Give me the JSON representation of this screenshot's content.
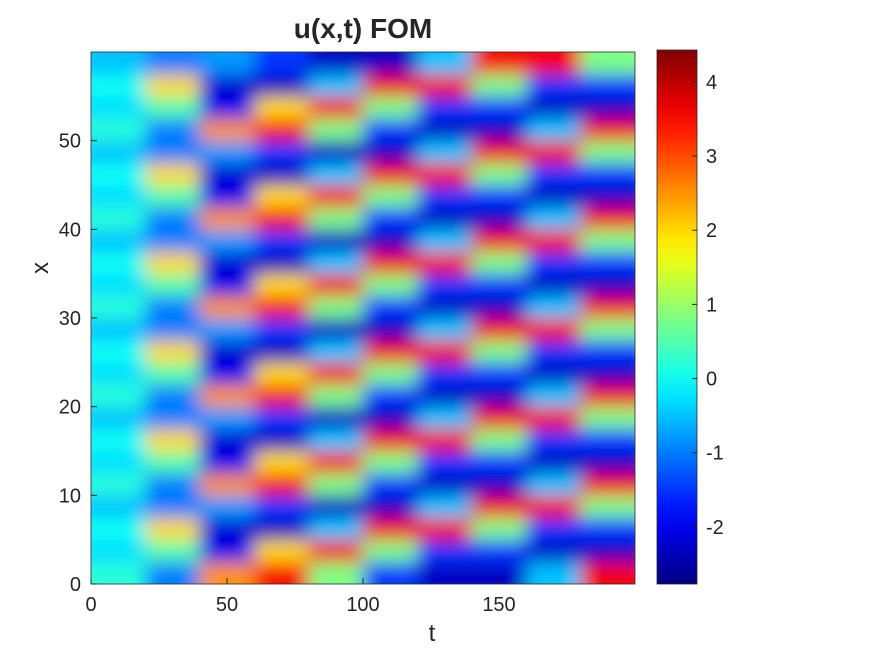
{
  "chart_data": {
    "type": "heatmap",
    "title": "u(x,t) FOM",
    "x_label": "t",
    "y_label": "x",
    "colormap": "jet",
    "x": [
      10,
      30,
      50,
      70,
      90,
      110,
      130,
      150,
      170,
      190
    ],
    "y": [
      1.25,
      3.75,
      6.25,
      8.75,
      11.25,
      13.75,
      16.25,
      18.75,
      21.25,
      23.75,
      26.25,
      28.75,
      31.25,
      33.75,
      36.25,
      38.75,
      41.25,
      43.75,
      46.25,
      48.75,
      51.25,
      53.75,
      56.25,
      58.75
    ],
    "z": [
      [
        0.2,
        -1.0,
        2.5,
        3.6,
        0.8,
        -1.5,
        -2.3,
        -2.3,
        -0.5,
        3.6
      ],
      [
        -0.3,
        0.5,
        -2.0,
        2.0,
        3.6,
        0.8,
        -1.5,
        -1.5,
        -2.3,
        -2.3
      ],
      [
        0.0,
        2.0,
        -2.2,
        -2.3,
        -0.5,
        3.6,
        3.6,
        0.8,
        -1.5,
        -1.5
      ],
      [
        -0.5,
        -1.0,
        -0.8,
        -1.5,
        -2.3,
        -2.3,
        -0.5,
        3.6,
        3.6,
        0.8
      ],
      [
        0.2,
        -1.0,
        2.5,
        3.6,
        0.8,
        -1.5,
        -2.3,
        -2.3,
        -0.5,
        3.6
      ],
      [
        -0.3,
        0.5,
        -2.0,
        2.0,
        3.6,
        0.8,
        -1.5,
        -1.5,
        -2.3,
        -2.3
      ],
      [
        0.0,
        2.0,
        -2.2,
        -2.3,
        -0.5,
        3.6,
        3.6,
        0.8,
        -1.5,
        -1.5
      ],
      [
        -0.5,
        -1.0,
        -0.8,
        -1.5,
        -2.3,
        -2.3,
        -0.5,
        3.6,
        3.6,
        0.8
      ],
      [
        0.2,
        -1.0,
        2.5,
        3.6,
        0.8,
        -1.5,
        -2.3,
        -2.3,
        -0.5,
        3.6
      ],
      [
        -0.3,
        0.5,
        -2.0,
        2.0,
        3.6,
        0.8,
        -1.5,
        -1.5,
        -2.3,
        -2.3
      ],
      [
        0.0,
        2.0,
        -2.2,
        -2.3,
        -0.5,
        3.6,
        3.6,
        0.8,
        -1.5,
        -1.5
      ],
      [
        -0.5,
        -1.0,
        -0.8,
        -1.5,
        -2.3,
        -2.3,
        -0.5,
        3.6,
        3.6,
        0.8
      ],
      [
        0.2,
        -1.0,
        2.5,
        3.6,
        0.8,
        -1.5,
        -2.3,
        -2.3,
        -0.5,
        3.6
      ],
      [
        -0.3,
        0.5,
        -2.0,
        2.0,
        3.6,
        0.8,
        -1.5,
        -1.5,
        -2.3,
        -2.3
      ],
      [
        0.0,
        2.0,
        -2.2,
        -2.3,
        -0.5,
        3.6,
        3.6,
        0.8,
        -1.5,
        -1.5
      ],
      [
        -0.5,
        -1.0,
        -0.8,
        -1.5,
        -2.3,
        -2.3,
        -0.5,
        3.6,
        3.6,
        0.8
      ],
      [
        0.2,
        -1.0,
        2.5,
        3.6,
        0.8,
        -1.5,
        -2.3,
        -2.3,
        -0.5,
        3.6
      ],
      [
        -0.3,
        0.5,
        -2.0,
        2.0,
        3.6,
        0.8,
        -1.5,
        -1.5,
        -2.3,
        -2.3
      ],
      [
        0.0,
        2.0,
        -2.2,
        -2.3,
        -0.5,
        3.6,
        3.6,
        0.8,
        -1.5,
        -1.5
      ],
      [
        -0.5,
        -1.0,
        -0.8,
        -1.5,
        -2.3,
        -2.3,
        -0.5,
        3.6,
        3.6,
        0.8
      ],
      [
        0.2,
        -1.0,
        2.5,
        3.6,
        0.8,
        -1.5,
        -2.3,
        -2.3,
        -0.5,
        3.6
      ],
      [
        -0.3,
        0.5,
        -2.0,
        2.0,
        3.6,
        0.8,
        -1.5,
        -1.5,
        -2.3,
        -2.3
      ],
      [
        0.0,
        2.0,
        -2.2,
        -2.3,
        -0.5,
        3.6,
        3.6,
        0.8,
        -1.5,
        -1.5
      ],
      [
        -0.5,
        -1.0,
        -0.8,
        -1.5,
        -2.3,
        -2.3,
        -0.5,
        3.6,
        3.6,
        0.8
      ]
    ],
    "xlim": [
      0,
      200
    ],
    "ylim": [
      0,
      60
    ],
    "xticks": [
      0,
      50,
      100,
      150
    ],
    "yticks": [
      0,
      10,
      20,
      30,
      40,
      50
    ],
    "clim": [
      -2.77,
      4.43
    ],
    "cticks": [
      -2,
      -1,
      0,
      1,
      2,
      3,
      4
    ]
  }
}
